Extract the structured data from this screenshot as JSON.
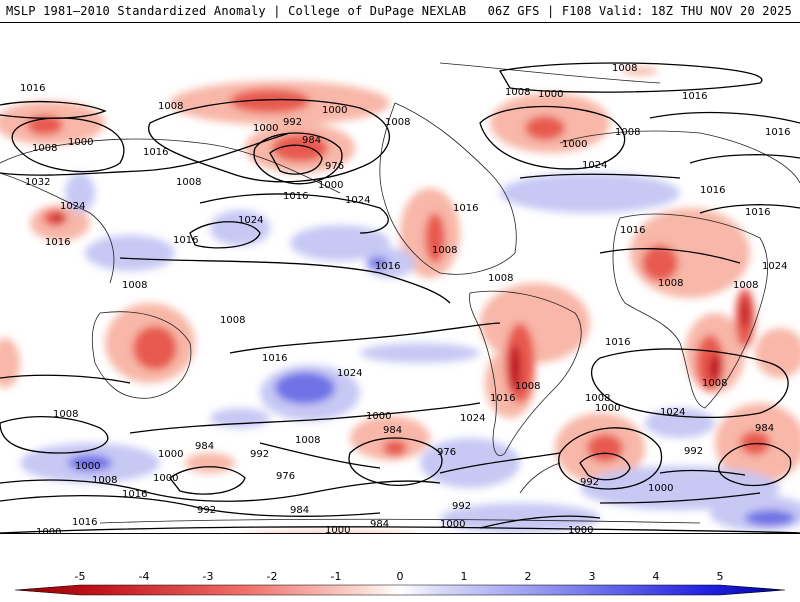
{
  "header": {
    "left": "MSLP 1981–2010 Standardized Anomaly | College of DuPage NEXLAB",
    "right": "06Z GFS | F108 Valid: 18Z THU NOV 20 2025"
  },
  "colorbar": {
    "ticks": [
      "-5",
      "-4",
      "-3",
      "-2",
      "-1",
      "0",
      "1",
      "2",
      "3",
      "4",
      "5"
    ],
    "negative_color": "#c0101a",
    "positive_color": "#1414d8"
  },
  "map": {
    "isobar_labels": [
      "1016",
      "1008",
      "1000",
      "1008",
      "1000",
      "992",
      "1000",
      "984",
      "976",
      "1000",
      "1008",
      "1008",
      "1000",
      "1008",
      "1000",
      "1016",
      "1008",
      "1024",
      "1016",
      "1032",
      "1024",
      "1016",
      "1008",
      "1016",
      "1024",
      "1024",
      "1016",
      "1016",
      "1016",
      "1008",
      "1008",
      "1016",
      "1016",
      "1016",
      "1016",
      "1008",
      "1008",
      "1008",
      "1008",
      "1008",
      "1016",
      "1024",
      "1008",
      "1016",
      "1016",
      "1024",
      "1024",
      "1000",
      "984",
      "976",
      "1008",
      "1000",
      "984",
      "992",
      "1000",
      "1000",
      "1008",
      "976",
      "992",
      "984",
      "1016",
      "1008",
      "992",
      "1000",
      "984",
      "992",
      "984",
      "1000",
      "1000",
      "992",
      "1000",
      "1000",
      "1024",
      "1008",
      "1016",
      "1000"
    ]
  }
}
